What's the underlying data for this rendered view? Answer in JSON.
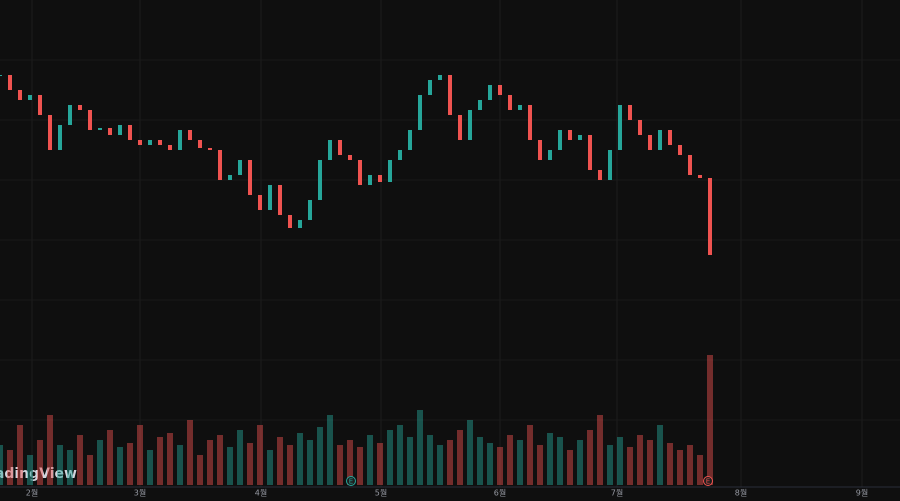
{
  "chart_data": {
    "type": "candlestick",
    "watermark": "TradingView",
    "xlim": [
      0,
      90
    ],
    "xticks": [
      {
        "value": 3.2,
        "label": "2월"
      },
      {
        "value": 14,
        "label": "3월"
      },
      {
        "value": 26.1,
        "label": "4월"
      },
      {
        "value": 38.1,
        "label": "5월"
      },
      {
        "value": 50,
        "label": "6월"
      },
      {
        "value": 61.7,
        "label": "7월"
      },
      {
        "value": 74.1,
        "label": "8월"
      },
      {
        "value": 86.2,
        "label": "9월"
      }
    ],
    "ylim": [
      0,
      500
    ],
    "volume_ylim": [
      0,
      160
    ],
    "up_color": "#26a69a",
    "down_color": "#ef5350",
    "grid": true,
    "series": [
      {
        "name": "Price",
        "values": [
          425,
          410,
          400,
          405,
          385,
          350,
          375,
          395,
          390,
          370,
          372,
          365,
          375,
          360,
          355,
          360,
          355,
          350,
          370,
          360,
          352,
          350,
          320,
          325,
          340,
          305,
          290,
          315,
          285,
          272,
          280,
          300,
          340,
          360,
          345,
          340,
          315,
          325,
          318,
          340,
          350,
          370,
          405,
          420,
          425,
          385,
          360,
          390,
          400,
          415,
          405,
          390,
          395,
          360,
          340,
          350,
          370,
          360,
          365,
          330,
          320,
          350,
          395,
          380,
          365,
          350,
          370,
          355,
          345,
          325,
          322,
          245
        ]
      },
      {
        "name": "Volume",
        "values": [
          40,
          35,
          60,
          30,
          45,
          70,
          40,
          35,
          50,
          30,
          45,
          55,
          38,
          42,
          60,
          35,
          48,
          52,
          40,
          65,
          30,
          45,
          50,
          38,
          55,
          42,
          60,
          35,
          48,
          40,
          52,
          45,
          58,
          70,
          40,
          45,
          38,
          50,
          42,
          55,
          60,
          48,
          75,
          50,
          40,
          45,
          55,
          65,
          48,
          42,
          38,
          50,
          45,
          60,
          40,
          52,
          48,
          35,
          45,
          55,
          70,
          40,
          48,
          38,
          50,
          45,
          60,
          42,
          35,
          40,
          30,
          130
        ]
      }
    ],
    "events": [
      {
        "x": 35.1,
        "label": "E",
        "color": "#26a69a"
      },
      {
        "x": 70.8,
        "label": "E",
        "color": "#ef5350"
      }
    ]
  }
}
